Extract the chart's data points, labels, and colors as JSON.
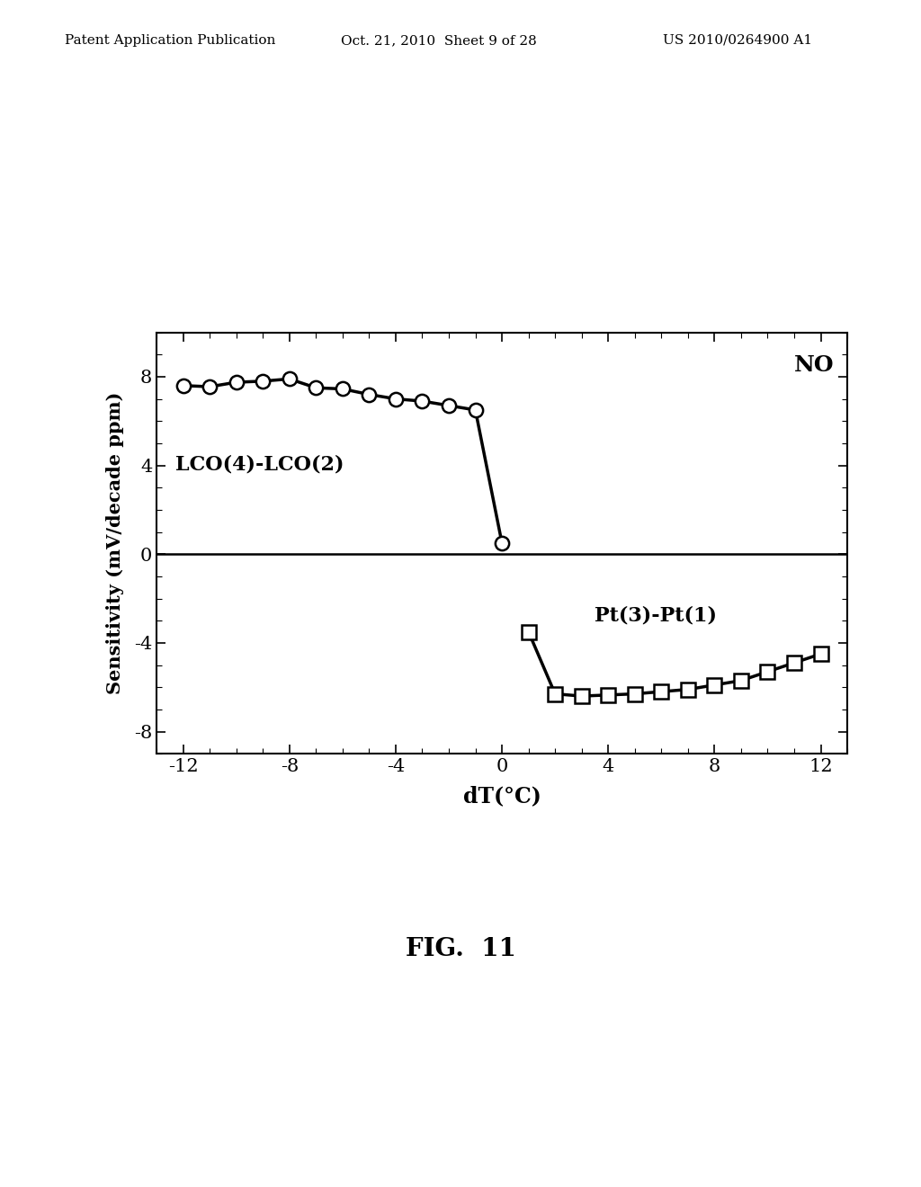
{
  "title": "NO",
  "xlabel": "dT(°C)",
  "ylabel": "Sensitivity (mV/decade ppm)",
  "xlim": [
    -13,
    13
  ],
  "ylim": [
    -9,
    10
  ],
  "xticks": [
    -12,
    -8,
    -4,
    0,
    4,
    8,
    12
  ],
  "yticks": [
    -8,
    -4,
    0,
    4,
    8
  ],
  "lco_label": "LCO(4)-LCO(2)",
  "pt_label": "Pt(3)-Pt(1)",
  "lco_x": [
    -12,
    -11,
    -10,
    -9,
    -8,
    -7,
    -6,
    -5,
    -4,
    -3,
    -2,
    -1,
    0
  ],
  "lco_y": [
    7.6,
    7.55,
    7.75,
    7.8,
    7.9,
    7.5,
    7.45,
    7.2,
    7.0,
    6.9,
    6.7,
    6.5,
    0.5
  ],
  "pt_x": [
    1,
    2,
    3,
    4,
    5,
    6,
    7,
    8,
    9,
    10,
    11,
    12
  ],
  "pt_y": [
    -3.5,
    -6.3,
    -6.4,
    -6.35,
    -6.3,
    -6.2,
    -6.1,
    -5.9,
    -5.7,
    -5.3,
    -4.9,
    -4.5
  ],
  "header_left": "Patent Application Publication",
  "header_mid": "Oct. 21, 2010  Sheet 9 of 28",
  "header_right": "US 2010/0264900 A1",
  "fig_label": "FIG.  11",
  "background_color": "#ffffff",
  "line_color": "#000000",
  "zero_line_color": "#000000",
  "header_fontsize": 11,
  "tick_fontsize": 15,
  "label_fontsize": 17,
  "ylabel_fontsize": 15,
  "anno_fontsize": 16,
  "title_fontsize": 18,
  "figlabel_fontsize": 20
}
